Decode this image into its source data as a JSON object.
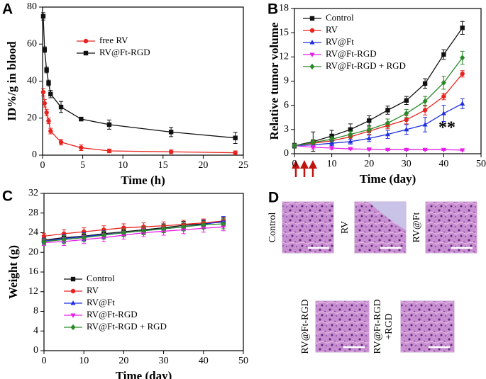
{
  "chart_data": [
    {
      "type": "line",
      "panel": "A",
      "xlabel": "Time (h)",
      "ylabel": "ID%/g in blood",
      "x": [
        0.083,
        0.25,
        0.5,
        0.75,
        1,
        2.3,
        4.8,
        8.3,
        16,
        24
      ],
      "xlim": [
        0,
        25
      ],
      "xticks": [
        0,
        5,
        10,
        15,
        20,
        25
      ],
      "ylim": [
        0,
        80
      ],
      "yticks": [
        0,
        20,
        40,
        60,
        80
      ],
      "legend": "upper right",
      "series": [
        {
          "name": "free RV",
          "color": "#e8231f",
          "marker": "circle",
          "values": [
            34,
            28,
            23,
            18.5,
            13,
            7,
            4,
            2.3,
            1.8,
            1.3
          ],
          "errors": [
            2,
            2,
            1.8,
            1.5,
            1.5,
            1.5,
            1.5,
            1,
            1,
            1
          ]
        },
        {
          "name": "RV@Ft-RGD",
          "color": "#111111",
          "marker": "square",
          "values": [
            75,
            57,
            46,
            39,
            33,
            26,
            19.5,
            16.5,
            12.5,
            9.3
          ],
          "errors": [
            2,
            1.5,
            1.5,
            1.5,
            2,
            3,
            1,
            2.5,
            2.5,
            3
          ]
        }
      ]
    },
    {
      "type": "line",
      "panel": "B",
      "xlabel": "Time (day)",
      "ylabel": "Relative tumor volume",
      "annotation": "**",
      "x": [
        0,
        5,
        10,
        15,
        20,
        25,
        30,
        35,
        40,
        45
      ],
      "xlim": [
        0,
        50
      ],
      "xticks": [
        0,
        10,
        20,
        30,
        40,
        50
      ],
      "ylim": [
        0,
        18
      ],
      "yticks": [
        0,
        3,
        6,
        9,
        12,
        15,
        18
      ],
      "legend": "upper left",
      "series": [
        {
          "name": "Control",
          "color": "#111111",
          "marker": "square",
          "values": [
            1,
            1.5,
            2.2,
            3.0,
            4.1,
            5.4,
            6.6,
            8.7,
            12.3,
            15.6
          ],
          "errors": [
            0.3,
            1.2,
            0.7,
            0.7,
            0.6,
            0.5,
            0.5,
            0.6,
            0.6,
            0.8
          ]
        },
        {
          "name": "RV",
          "color": "#e8231f",
          "marker": "circle",
          "values": [
            1,
            1.3,
            1.6,
            2.1,
            2.8,
            3.5,
            4.2,
            5.4,
            7.1,
            9.9
          ],
          "errors": [
            0.2,
            0.3,
            0.3,
            0.3,
            0.4,
            0.4,
            0.5,
            0.6,
            0.4,
            0.4
          ]
        },
        {
          "name": "RV@Ft",
          "color": "#1f2fe0",
          "marker": "triangle-up",
          "values": [
            1,
            1.1,
            1.3,
            1.5,
            1.9,
            2.4,
            3.0,
            3.6,
            5.0,
            6.2
          ],
          "errors": [
            0.2,
            0.3,
            0.3,
            0.3,
            0.4,
            0.5,
            0.6,
            0.9,
            1.0,
            0.6
          ]
        },
        {
          "name": "RV@Ft-RGD",
          "color": "#e81ee8",
          "marker": "triangle-down",
          "values": [
            1,
            0.8,
            0.7,
            0.6,
            0.55,
            0.5,
            0.5,
            0.5,
            0.5,
            0.45
          ],
          "errors": [
            0.2,
            0.2,
            0.2,
            0.1,
            0.1,
            0.1,
            0.1,
            0.1,
            0.1,
            0.1
          ]
        },
        {
          "name": "RV@Ft-RGD + RGD",
          "color": "#2a8a2a",
          "marker": "diamond",
          "values": [
            1,
            1.4,
            1.8,
            2.4,
            3.0,
            3.8,
            5.0,
            6.5,
            8.8,
            11.9
          ],
          "errors": [
            0.2,
            0.3,
            0.3,
            0.4,
            0.4,
            0.5,
            0.5,
            0.6,
            0.8,
            0.8
          ]
        }
      ]
    },
    {
      "type": "line",
      "panel": "C",
      "xlabel": "Time (day)",
      "ylabel": "Weight (g)",
      "x": [
        0,
        5,
        10,
        15,
        20,
        25,
        30,
        35,
        40,
        45
      ],
      "xlim": [
        0,
        50
      ],
      "xticks": [
        0,
        10,
        20,
        30,
        40,
        50
      ],
      "ylim": [
        0,
        32
      ],
      "yticks": [
        0,
        4,
        8,
        12,
        16,
        20,
        24,
        28,
        32
      ],
      "legend": "lower left",
      "series": [
        {
          "name": "Control",
          "color": "#111111",
          "marker": "square",
          "values": [
            22.5,
            23,
            23.3,
            23.8,
            24.2,
            24.6,
            25,
            25.5,
            25.8,
            26.2
          ],
          "errors": [
            0.6,
            0.8,
            0.8,
            0.8,
            0.8,
            0.8,
            0.8,
            0.8,
            0.8,
            0.8
          ]
        },
        {
          "name": "RV",
          "color": "#e8231f",
          "marker": "circle",
          "values": [
            23.3,
            23.8,
            24.2,
            24.6,
            25,
            25.2,
            25.4,
            25.7,
            26,
            26.4
          ],
          "errors": [
            0.6,
            0.8,
            0.8,
            0.8,
            0.8,
            0.8,
            0.8,
            0.8,
            0.8,
            0.8
          ]
        },
        {
          "name": "RV@Ft",
          "color": "#1f2fe0",
          "marker": "triangle-up",
          "values": [
            22.3,
            22.8,
            23.2,
            23.6,
            24,
            24.4,
            24.8,
            25.2,
            25.7,
            26.3
          ],
          "errors": [
            0.6,
            0.8,
            0.8,
            0.8,
            0.8,
            0.8,
            0.8,
            0.8,
            0.8,
            1
          ]
        },
        {
          "name": "RV@Ft-RGD",
          "color": "#e81ee8",
          "marker": "triangle-down",
          "values": [
            22,
            22.2,
            22.6,
            23,
            23.5,
            24,
            24.3,
            24.6,
            24.9,
            25.2
          ],
          "errors": [
            0.6,
            0.8,
            0.8,
            0.8,
            0.8,
            0.8,
            0.8,
            0.8,
            0.8,
            0.8
          ]
        },
        {
          "name": "RV@Ft-RGD + RGD",
          "color": "#2a8a2a",
          "marker": "diamond",
          "values": [
            22.2,
            22.6,
            23,
            23.5,
            24,
            24.4,
            24.8,
            25.2,
            25.6,
            25.8
          ],
          "errors": [
            0.6,
            0.8,
            0.8,
            0.8,
            0.8,
            0.8,
            0.8,
            0.8,
            0.8,
            1
          ]
        }
      ]
    }
  ],
  "histology": {
    "panel": "D",
    "images": [
      {
        "label": [
          "Control"
        ]
      },
      {
        "label": [
          "RV"
        ]
      },
      {
        "label": [
          "RV@Ft"
        ]
      },
      {
        "label": [
          "RV@Ft-RGD"
        ]
      },
      {
        "label": [
          "RV@Ft-RGD",
          "+RGD"
        ]
      }
    ]
  }
}
